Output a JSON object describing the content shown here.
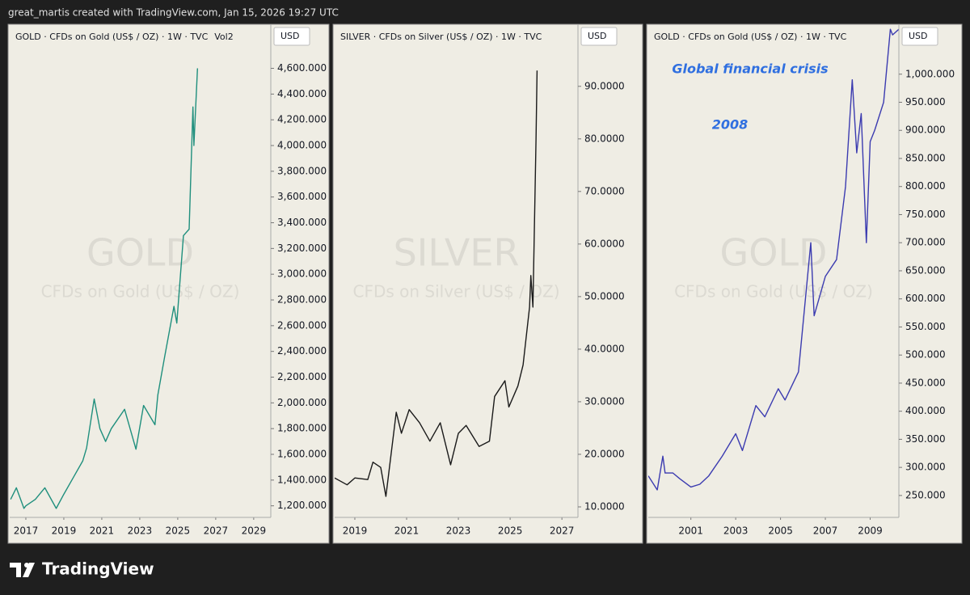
{
  "header": {
    "text": "great_martis created with TradingView.com, Jan 15, 2026 19:27 UTC"
  },
  "footer": {
    "brand": "TradingView"
  },
  "chart_data": [
    {
      "type": "line",
      "title": "GOLD · CFDs on Gold (US$ / OZ) · 1W · TVC",
      "indicator": "Vol",
      "indicator_value": "2",
      "watermark": "GOLD",
      "watermark_subtitle": "CFDs on Gold (US$ / OZ)",
      "currency": "USD",
      "color": "#1f8f7d",
      "x": [
        2016.2,
        2016.5,
        2016.9,
        2017.0,
        2017.5,
        2018.0,
        2018.6,
        2019.0,
        2019.5,
        2020.0,
        2020.2,
        2020.6,
        2020.9,
        2021.2,
        2021.5,
        2022.2,
        2022.8,
        2023.2,
        2023.8,
        2023.95,
        2024.3,
        2024.8,
        2024.95,
        2025.3,
        2025.6,
        2025.8,
        2025.85,
        2026.04
      ],
      "values": [
        1250,
        1340,
        1180,
        1200,
        1250,
        1340,
        1180,
        1290,
        1420,
        1550,
        1650,
        2030,
        1800,
        1700,
        1800,
        1950,
        1640,
        1980,
        1830,
        2060,
        2350,
        2750,
        2620,
        3300,
        3350,
        4300,
        4000,
        4600
      ],
      "xlim": [
        2016.15,
        2029.9
      ],
      "xticks": [
        2017,
        2019,
        2021,
        2023,
        2025,
        2027,
        2029
      ],
      "ylim": [
        1110,
        4930
      ],
      "yticks": [
        {
          "value": 1200,
          "label": "1,200.000"
        },
        {
          "value": 1400,
          "label": "1,400.000"
        },
        {
          "value": 1600,
          "label": "1,600.000"
        },
        {
          "value": 1800,
          "label": "1,800.000"
        },
        {
          "value": 2000,
          "label": "2,000.000"
        },
        {
          "value": 2200,
          "label": "2,200.000"
        },
        {
          "value": 2400,
          "label": "2,400.000"
        },
        {
          "value": 2600,
          "label": "2,600.000"
        },
        {
          "value": 2800,
          "label": "2,800.000"
        },
        {
          "value": 3000,
          "label": "3,000.000"
        },
        {
          "value": 3200,
          "label": "3,200.000"
        },
        {
          "value": 3400,
          "label": "3,400.000"
        },
        {
          "value": 3600,
          "label": "3,600.000"
        },
        {
          "value": 3800,
          "label": "3,800.000"
        },
        {
          "value": 4000,
          "label": "4,000.000"
        },
        {
          "value": 4200,
          "label": "4,200.000"
        },
        {
          "value": 4400,
          "label": "4,400.000"
        },
        {
          "value": 4600,
          "label": "4,600.000"
        }
      ]
    },
    {
      "type": "line",
      "title": "SILVER · CFDs on Silver (US$ / OZ) · 1W · TVC",
      "watermark": "SILVER",
      "watermark_subtitle": "CFDs on Silver (US$ / OZ)",
      "currency": "USD",
      "color": "#1a1a1a",
      "x": [
        2018.22,
        2018.7,
        2019.0,
        2019.5,
        2019.7,
        2020.0,
        2020.2,
        2020.6,
        2020.8,
        2021.1,
        2021.5,
        2021.9,
        2022.3,
        2022.7,
        2023.0,
        2023.3,
        2023.8,
        2024.2,
        2024.4,
        2024.8,
        2024.95,
        2025.3,
        2025.5,
        2025.75,
        2025.8,
        2025.88,
        2026.0,
        2026.04
      ],
      "values": [
        15.5,
        14.2,
        15.5,
        15.2,
        18.5,
        17.5,
        12,
        28,
        24,
        28.5,
        26,
        22.5,
        26,
        18,
        24,
        25.5,
        21.5,
        22.5,
        31,
        34,
        29,
        33,
        37,
        48,
        54,
        48,
        80,
        93
      ],
      "xlim": [
        2018.22,
        2027.62
      ],
      "xticks": [
        2019,
        2021,
        2023,
        2025,
        2027
      ],
      "ylim": [
        8,
        101.5
      ],
      "yticks": [
        {
          "value": 10,
          "label": "10.0000"
        },
        {
          "value": 20,
          "label": "20.0000"
        },
        {
          "value": 30,
          "label": "30.0000"
        },
        {
          "value": 40,
          "label": "40.0000"
        },
        {
          "value": 50,
          "label": "50.0000"
        },
        {
          "value": 60,
          "label": "60.0000"
        },
        {
          "value": 70,
          "label": "70.0000"
        },
        {
          "value": 80,
          "label": "80.0000"
        },
        {
          "value": 90,
          "label": "90.0000"
        }
      ]
    },
    {
      "type": "line",
      "title": "GOLD · CFDs on Gold (US$ / OZ) · 1W · TVC",
      "watermark": "GOLD",
      "watermark_subtitle": "CFDs on Gold (US$ / OZ)",
      "currency": "USD",
      "color": "#3b3bb0",
      "annotations": [
        "Global financial crisis",
        "2008"
      ],
      "x": [
        1999.1,
        1999.5,
        1999.75,
        1999.85,
        2000.2,
        2000.5,
        2001.0,
        2001.4,
        2001.8,
        2002.4,
        2003.0,
        2003.3,
        2003.9,
        2004.3,
        2004.9,
        2005.2,
        2005.8,
        2006.35,
        2006.5,
        2007.0,
        2007.5,
        2007.9,
        2008.2,
        2008.4,
        2008.6,
        2008.83,
        2009.0,
        2009.2,
        2009.6,
        2009.9,
        2010.0,
        2010.28
      ],
      "values": [
        285,
        260,
        320,
        290,
        290,
        280,
        265,
        270,
        285,
        320,
        360,
        330,
        410,
        390,
        440,
        420,
        470,
        700,
        570,
        640,
        670,
        800,
        990,
        860,
        930,
        700,
        880,
        900,
        950,
        1080,
        1070,
        1080
      ],
      "xlim": [
        1999.1,
        2010.28
      ],
      "xticks": [
        2001,
        2003,
        2005,
        2007,
        2009
      ],
      "ylim": [
        211,
        1086
      ],
      "yticks": [
        {
          "value": 250,
          "label": "250.000"
        },
        {
          "value": 300,
          "label": "300.000"
        },
        {
          "value": 350,
          "label": "350.000"
        },
        {
          "value": 400,
          "label": "400.000"
        },
        {
          "value": 450,
          "label": "450.000"
        },
        {
          "value": 500,
          "label": "500.000"
        },
        {
          "value": 550,
          "label": "550.000"
        },
        {
          "value": 600,
          "label": "600.000"
        },
        {
          "value": 650,
          "label": "650.000"
        },
        {
          "value": 700,
          "label": "700.000"
        },
        {
          "value": 750,
          "label": "750.000"
        },
        {
          "value": 800,
          "label": "800.000"
        },
        {
          "value": 850,
          "label": "850.000"
        },
        {
          "value": 900,
          "label": "900.000"
        },
        {
          "value": 950,
          "label": "950.000"
        },
        {
          "value": 1000,
          "label": "1,000.000"
        }
      ]
    }
  ]
}
